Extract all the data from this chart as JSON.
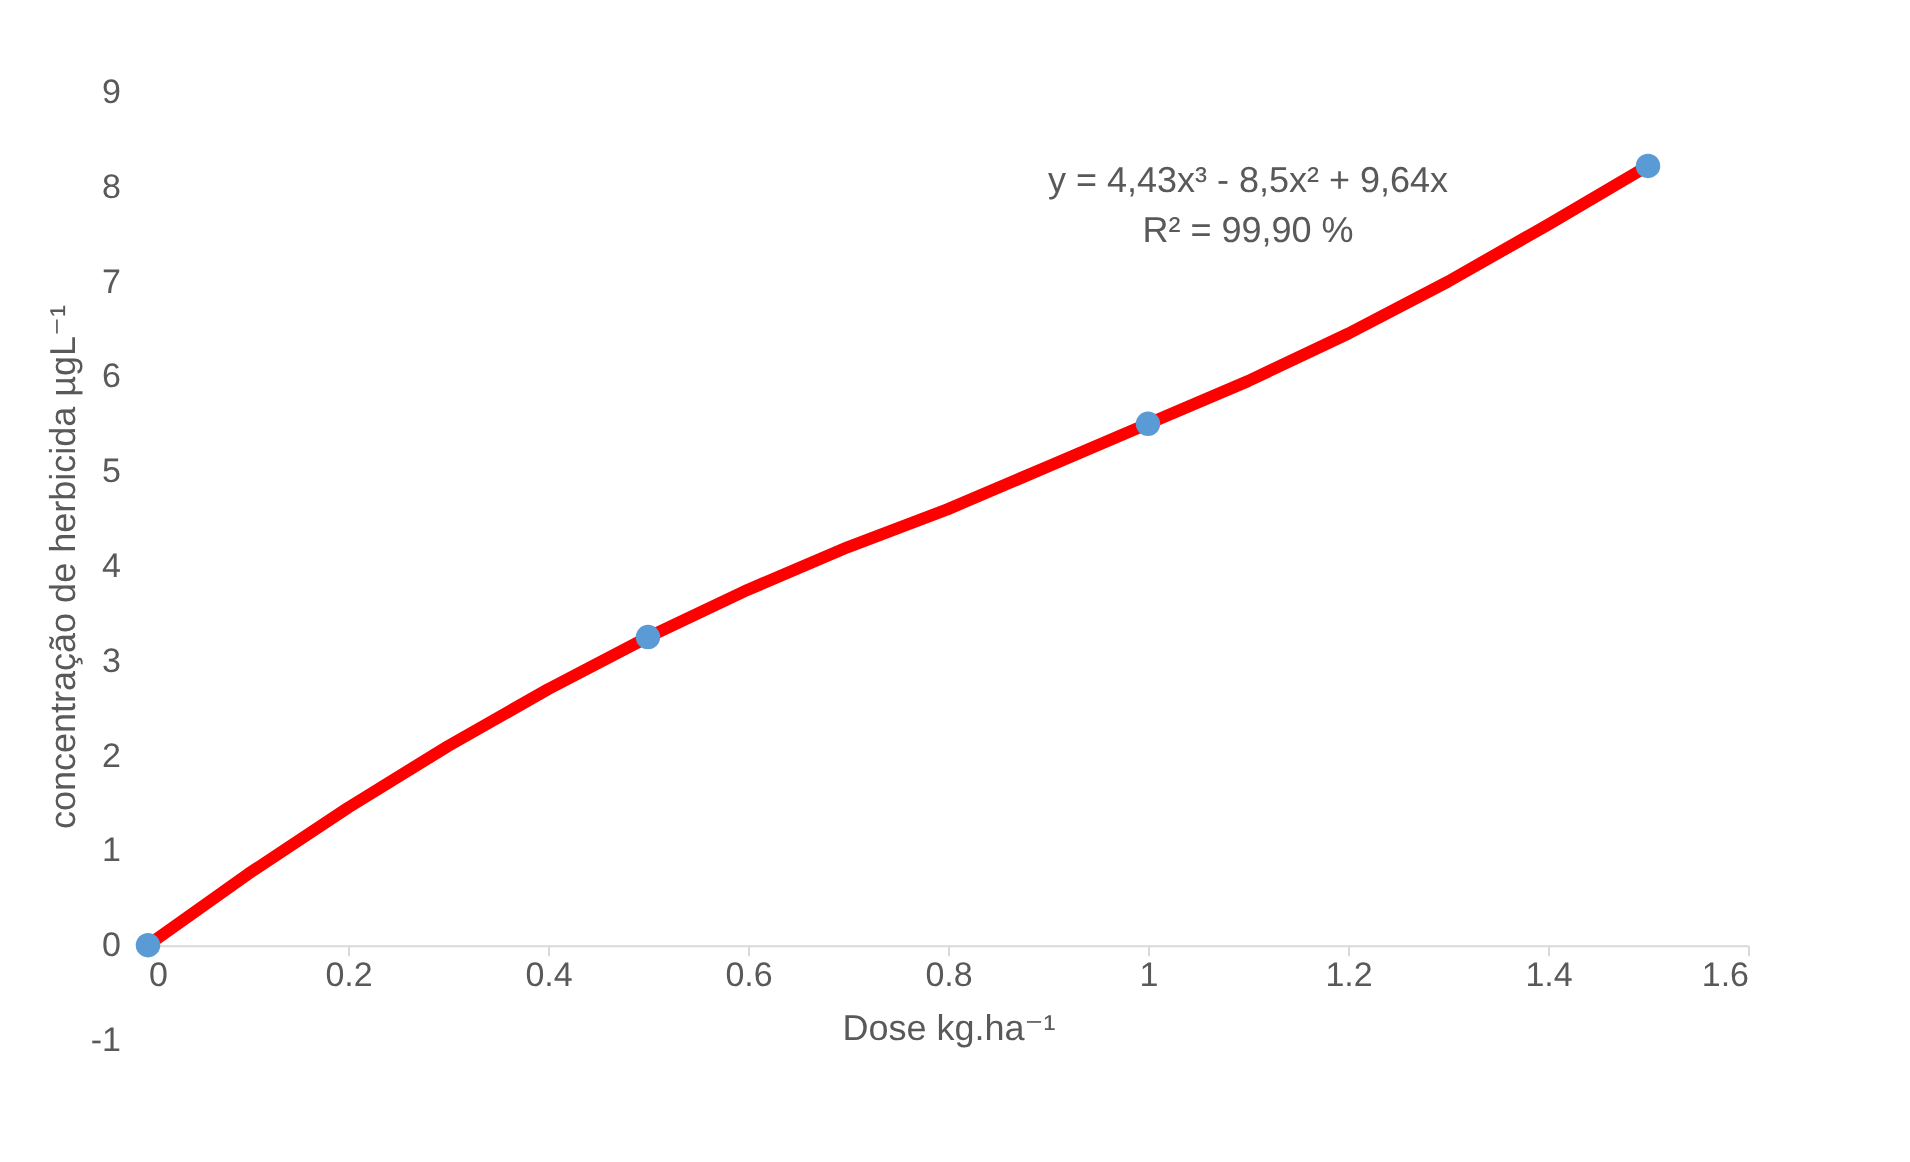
{
  "chart_data": {
    "type": "scatter",
    "xlabel": "Dose kg.ha⁻¹",
    "ylabel": "concentração de herbicida µgL⁻¹",
    "annotations": [
      "y = 4,43x³ - 8,5x² + 9,64x",
      "R² = 99,90 %"
    ],
    "series": [
      {
        "type": "line",
        "color": "#ff0000",
        "marker": "none",
        "x": [
          0,
          0.1,
          0.2,
          0.3,
          0.4,
          0.5,
          0.6,
          0.7,
          0.8,
          0.9,
          1.0,
          1.1,
          1.2,
          1.3,
          1.4,
          1.5
        ],
        "values": [
          0,
          0.75,
          1.45,
          2.1,
          2.7,
          3.25,
          3.75,
          4.2,
          4.6,
          5.05,
          5.5,
          5.95,
          6.45,
          7.0,
          7.6,
          8.22
        ]
      },
      {
        "color": "#5b9bd5",
        "marker": "circle",
        "x": [
          0,
          0.5,
          1,
          1.5
        ],
        "values": [
          0,
          3.25,
          5.5,
          8.22
        ]
      }
    ],
    "xlim": [
      0,
      1.6
    ],
    "xticks": [
      0,
      0.2,
      0.4,
      0.6,
      0.8,
      1,
      1.2,
      1.4,
      1.6
    ],
    "ylim": [
      -1,
      9
    ],
    "yticks": [
      -1,
      0,
      1,
      2,
      3,
      4,
      5,
      6,
      7,
      8,
      9
    ],
    "grid": false,
    "legend": false
  }
}
